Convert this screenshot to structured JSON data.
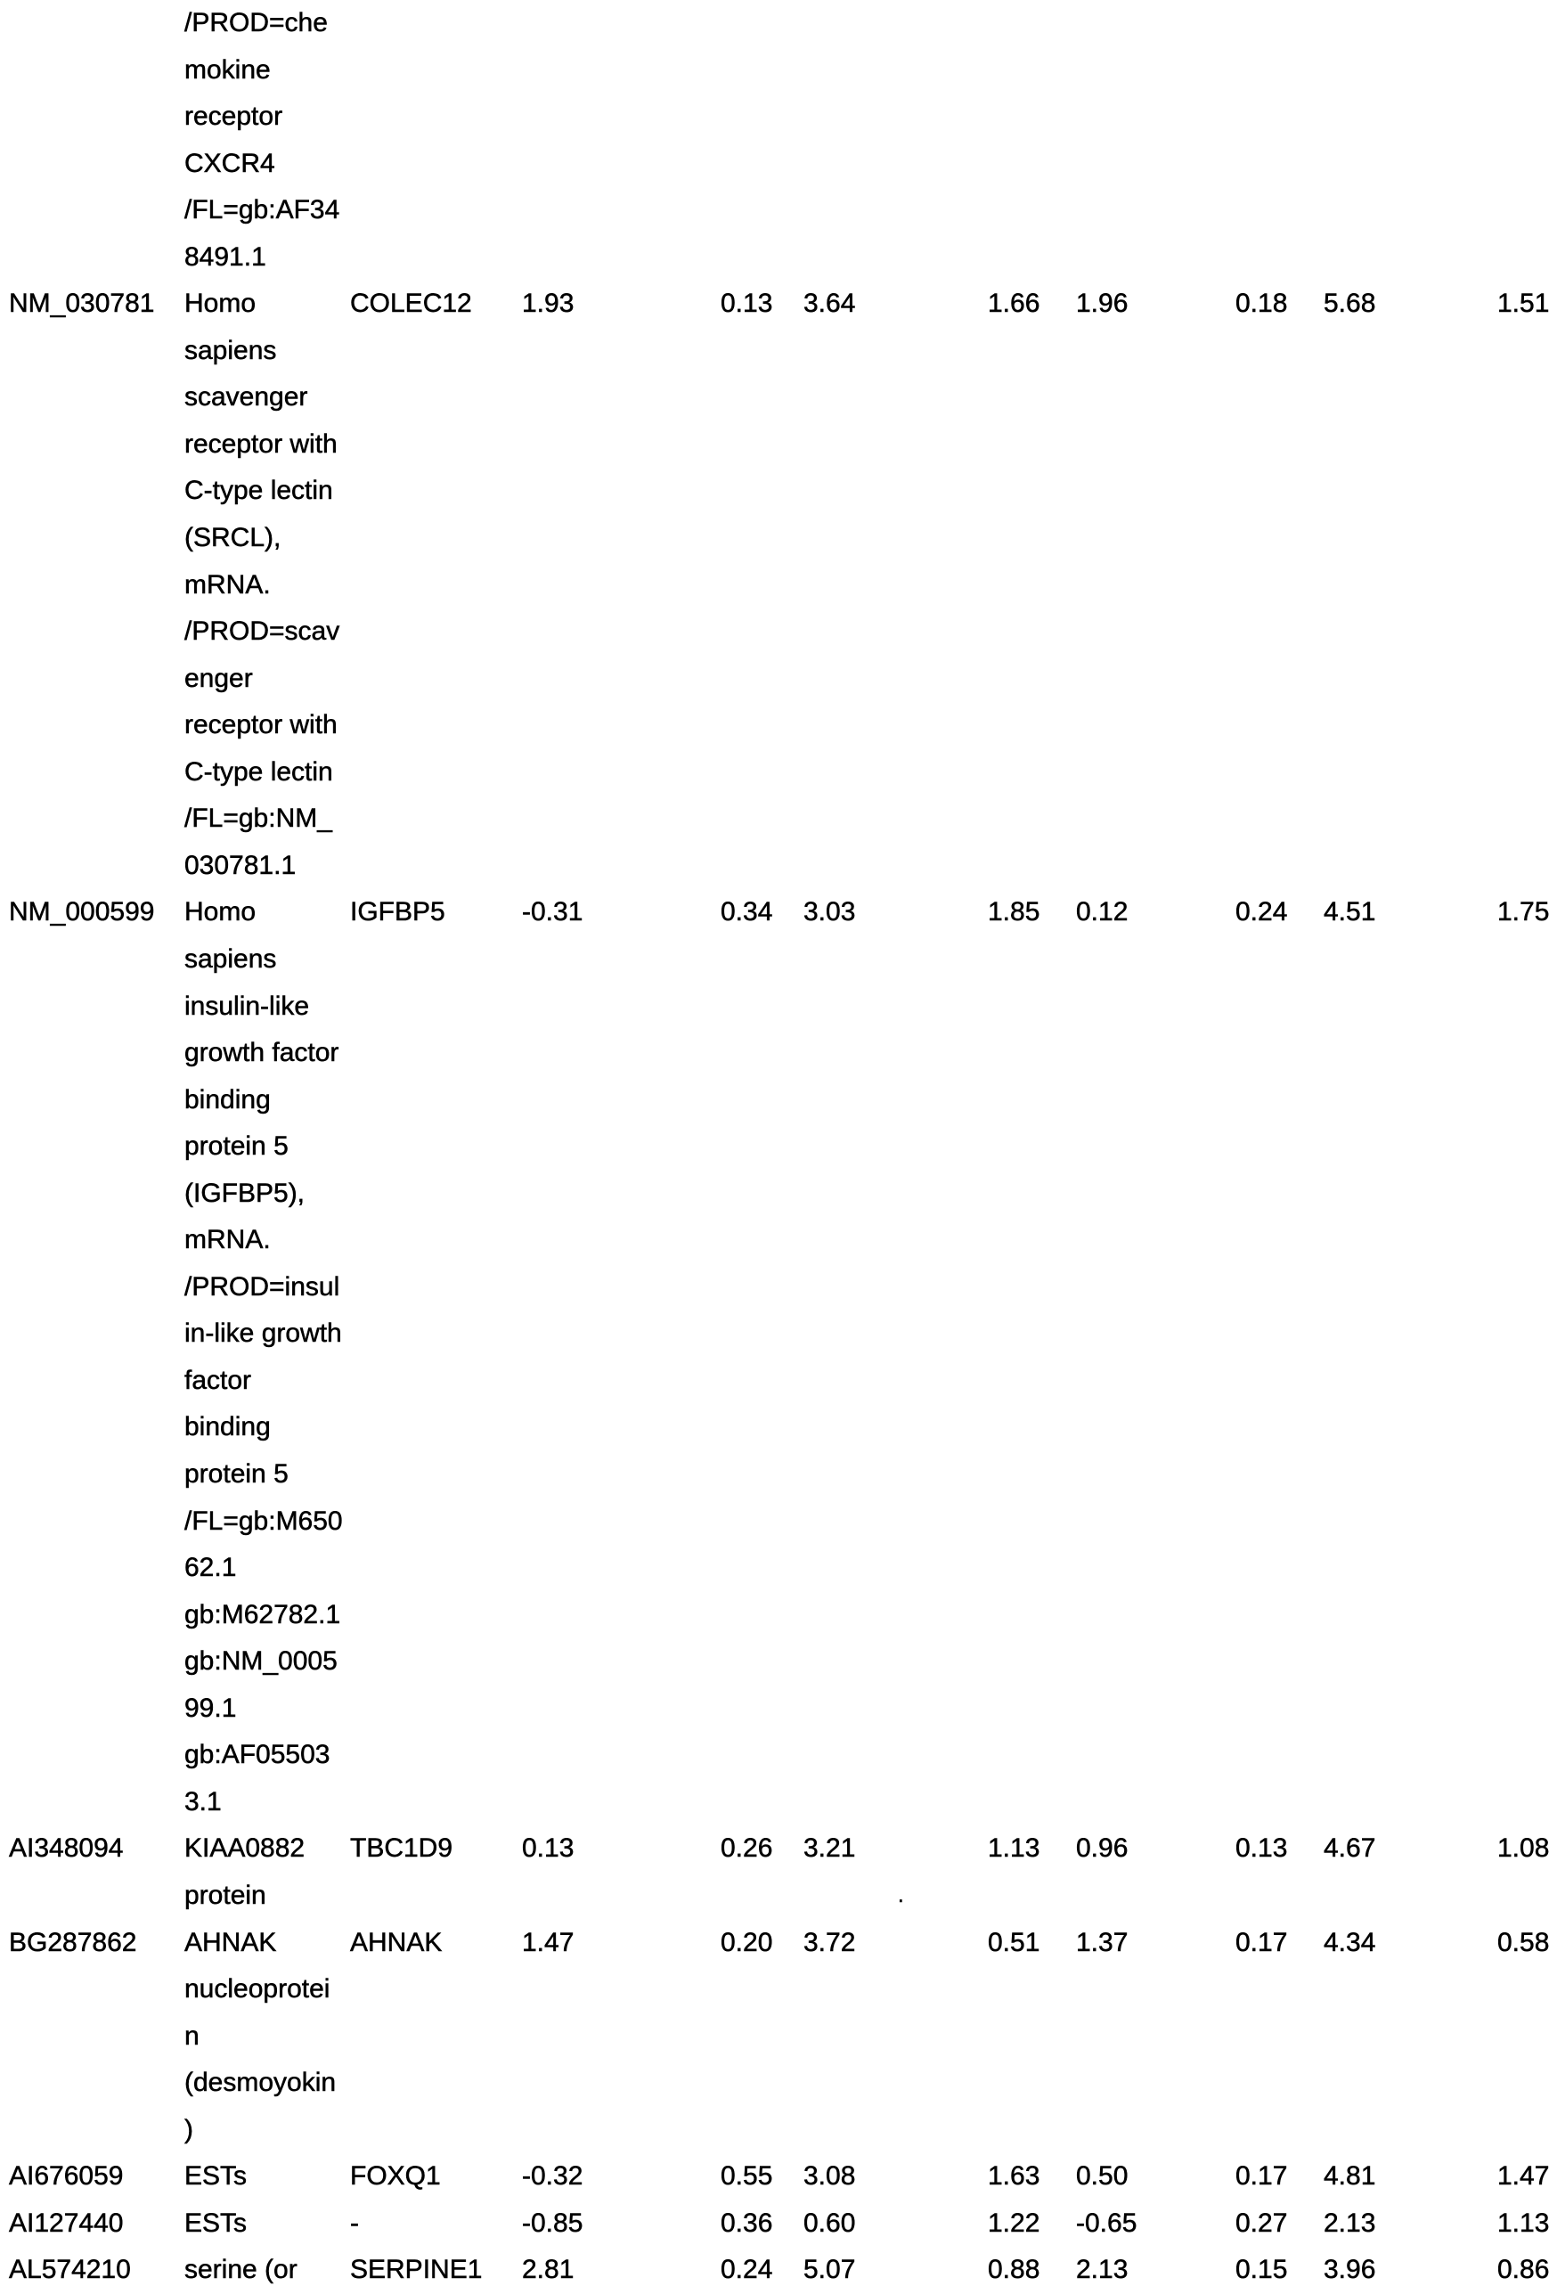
{
  "page": {
    "background_color": "#ffffff",
    "text_color": "#000000",
    "kind": "scanned gene-expression table page"
  },
  "artifacts": {
    "stray_dot": "."
  },
  "table": {
    "value_column_count": 8,
    "rows": [
      {
        "accession": "",
        "description_lines": [
          "/PROD=che",
          "mokine",
          "receptor",
          "CXCR4",
          "/FL=gb:AF34",
          "8491.1"
        ],
        "gene_symbol": "",
        "values": [
          "",
          "",
          "",
          "",
          "",
          "",
          "",
          ""
        ]
      },
      {
        "accession": "NM_030781",
        "description_lines": [
          "Homo",
          "sapiens",
          "scavenger",
          "receptor with",
          "C-type lectin",
          "(SRCL),",
          "mRNA.",
          "/PROD=scav",
          "enger",
          "receptor with",
          "C-type lectin",
          "/FL=gb:NM_",
          "030781.1"
        ],
        "gene_symbol": "COLEC12",
        "values": [
          "1.93",
          "0.13",
          "3.64",
          "1.66",
          "1.96",
          "0.18",
          "5.68",
          "1.51"
        ]
      },
      {
        "accession": "NM_000599",
        "description_lines": [
          "Homo",
          "sapiens",
          "insulin-like",
          "growth factor",
          "binding",
          "protein 5",
          "(IGFBP5),",
          "mRNA.",
          "/PROD=insul",
          "in-like growth",
          "factor",
          "binding",
          "protein 5",
          "/FL=gb:M650",
          "62.1",
          "gb:M62782.1",
          "gb:NM_0005",
          "99.1",
          "gb:AF05503",
          "3.1"
        ],
        "gene_symbol": "IGFBP5",
        "values": [
          "-0.31",
          "0.34",
          "3.03",
          "1.85",
          "0.12",
          "0.24",
          "4.51",
          "1.75"
        ]
      },
      {
        "accession": "AI348094",
        "description_lines": [
          "KIAA0882",
          "protein"
        ],
        "gene_symbol": "TBC1D9",
        "values": [
          "0.13",
          "0.26",
          "3.21",
          "1.13",
          "0.96",
          "0.13",
          "4.67",
          "1.08"
        ]
      },
      {
        "accession": "BG287862",
        "description_lines": [
          "AHNAK",
          "nucleoprotei",
          "n",
          "(desmoyokin",
          ")"
        ],
        "gene_symbol": "AHNAK",
        "values": [
          "1.47",
          "0.20",
          "3.72",
          "0.51",
          "1.37",
          "0.17",
          "4.34",
          "0.58"
        ]
      },
      {
        "accession": "AI676059",
        "description_lines": [
          "ESTs"
        ],
        "gene_symbol": "FOXQ1",
        "values": [
          "-0.32",
          "0.55",
          "3.08",
          "1.63",
          "0.50",
          "0.17",
          "4.81",
          "1.47"
        ]
      },
      {
        "accession": "AI127440",
        "description_lines": [
          "ESTs"
        ],
        "gene_symbol": "-",
        "values": [
          "-0.85",
          "0.36",
          "0.60",
          "1.22",
          "-0.65",
          "0.27",
          "2.13",
          "1.13"
        ]
      },
      {
        "accession": "AL574210",
        "description_lines": [
          "serine (or"
        ],
        "gene_symbol": "SERPINE1",
        "values": [
          "2.81",
          "0.24",
          "5.07",
          "0.88",
          "2.13",
          "0.15",
          "3.96",
          "0.86"
        ]
      }
    ]
  }
}
